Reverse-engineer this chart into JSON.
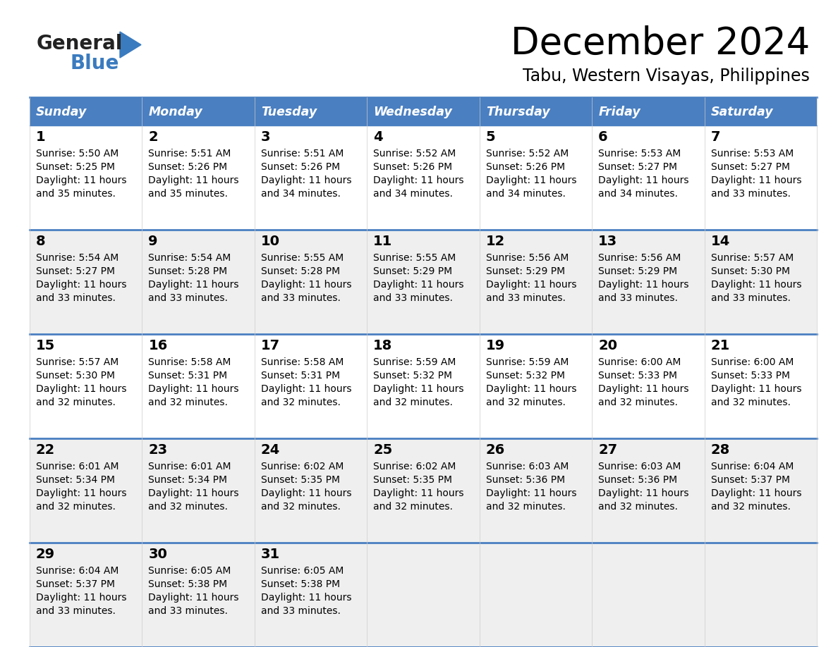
{
  "title": "December 2024",
  "subtitle": "Tabu, Western Visayas, Philippines",
  "days_of_week": [
    "Sunday",
    "Monday",
    "Tuesday",
    "Wednesday",
    "Thursday",
    "Friday",
    "Saturday"
  ],
  "header_bg": "#4a7fc1",
  "header_text_color": "#FFFFFF",
  "row_bg_odd": "#FFFFFF",
  "row_bg_even": "#EFEFEF",
  "row_bg_last": "#EFEFEF",
  "border_color": "#4a7fc1",
  "text_color": "#000000",
  "logo_general_color": "#222222",
  "logo_blue_color": "#3a7bbf",
  "calendar_data": [
    [
      {
        "day": 1,
        "sunrise": "5:50 AM",
        "sunset": "5:25 PM",
        "daylight": "11 hours and 35 minutes"
      },
      {
        "day": 2,
        "sunrise": "5:51 AM",
        "sunset": "5:26 PM",
        "daylight": "11 hours and 35 minutes"
      },
      {
        "day": 3,
        "sunrise": "5:51 AM",
        "sunset": "5:26 PM",
        "daylight": "11 hours and 34 minutes"
      },
      {
        "day": 4,
        "sunrise": "5:52 AM",
        "sunset": "5:26 PM",
        "daylight": "11 hours and 34 minutes"
      },
      {
        "day": 5,
        "sunrise": "5:52 AM",
        "sunset": "5:26 PM",
        "daylight": "11 hours and 34 minutes"
      },
      {
        "day": 6,
        "sunrise": "5:53 AM",
        "sunset": "5:27 PM",
        "daylight": "11 hours and 34 minutes"
      },
      {
        "day": 7,
        "sunrise": "5:53 AM",
        "sunset": "5:27 PM",
        "daylight": "11 hours and 33 minutes"
      }
    ],
    [
      {
        "day": 8,
        "sunrise": "5:54 AM",
        "sunset": "5:27 PM",
        "daylight": "11 hours and 33 minutes"
      },
      {
        "day": 9,
        "sunrise": "5:54 AM",
        "sunset": "5:28 PM",
        "daylight": "11 hours and 33 minutes"
      },
      {
        "day": 10,
        "sunrise": "5:55 AM",
        "sunset": "5:28 PM",
        "daylight": "11 hours and 33 minutes"
      },
      {
        "day": 11,
        "sunrise": "5:55 AM",
        "sunset": "5:29 PM",
        "daylight": "11 hours and 33 minutes"
      },
      {
        "day": 12,
        "sunrise": "5:56 AM",
        "sunset": "5:29 PM",
        "daylight": "11 hours and 33 minutes"
      },
      {
        "day": 13,
        "sunrise": "5:56 AM",
        "sunset": "5:29 PM",
        "daylight": "11 hours and 33 minutes"
      },
      {
        "day": 14,
        "sunrise": "5:57 AM",
        "sunset": "5:30 PM",
        "daylight": "11 hours and 33 minutes"
      }
    ],
    [
      {
        "day": 15,
        "sunrise": "5:57 AM",
        "sunset": "5:30 PM",
        "daylight": "11 hours and 32 minutes"
      },
      {
        "day": 16,
        "sunrise": "5:58 AM",
        "sunset": "5:31 PM",
        "daylight": "11 hours and 32 minutes"
      },
      {
        "day": 17,
        "sunrise": "5:58 AM",
        "sunset": "5:31 PM",
        "daylight": "11 hours and 32 minutes"
      },
      {
        "day": 18,
        "sunrise": "5:59 AM",
        "sunset": "5:32 PM",
        "daylight": "11 hours and 32 minutes"
      },
      {
        "day": 19,
        "sunrise": "5:59 AM",
        "sunset": "5:32 PM",
        "daylight": "11 hours and 32 minutes"
      },
      {
        "day": 20,
        "sunrise": "6:00 AM",
        "sunset": "5:33 PM",
        "daylight": "11 hours and 32 minutes"
      },
      {
        "day": 21,
        "sunrise": "6:00 AM",
        "sunset": "5:33 PM",
        "daylight": "11 hours and 32 minutes"
      }
    ],
    [
      {
        "day": 22,
        "sunrise": "6:01 AM",
        "sunset": "5:34 PM",
        "daylight": "11 hours and 32 minutes"
      },
      {
        "day": 23,
        "sunrise": "6:01 AM",
        "sunset": "5:34 PM",
        "daylight": "11 hours and 32 minutes"
      },
      {
        "day": 24,
        "sunrise": "6:02 AM",
        "sunset": "5:35 PM",
        "daylight": "11 hours and 32 minutes"
      },
      {
        "day": 25,
        "sunrise": "6:02 AM",
        "sunset": "5:35 PM",
        "daylight": "11 hours and 32 minutes"
      },
      {
        "day": 26,
        "sunrise": "6:03 AM",
        "sunset": "5:36 PM",
        "daylight": "11 hours and 32 minutes"
      },
      {
        "day": 27,
        "sunrise": "6:03 AM",
        "sunset": "5:36 PM",
        "daylight": "11 hours and 32 minutes"
      },
      {
        "day": 28,
        "sunrise": "6:04 AM",
        "sunset": "5:37 PM",
        "daylight": "11 hours and 32 minutes"
      }
    ],
    [
      {
        "day": 29,
        "sunrise": "6:04 AM",
        "sunset": "5:37 PM",
        "daylight": "11 hours and 33 minutes"
      },
      {
        "day": 30,
        "sunrise": "6:05 AM",
        "sunset": "5:38 PM",
        "daylight": "11 hours and 33 minutes"
      },
      {
        "day": 31,
        "sunrise": "6:05 AM",
        "sunset": "5:38 PM",
        "daylight": "11 hours and 33 minutes"
      },
      null,
      null,
      null,
      null
    ]
  ]
}
